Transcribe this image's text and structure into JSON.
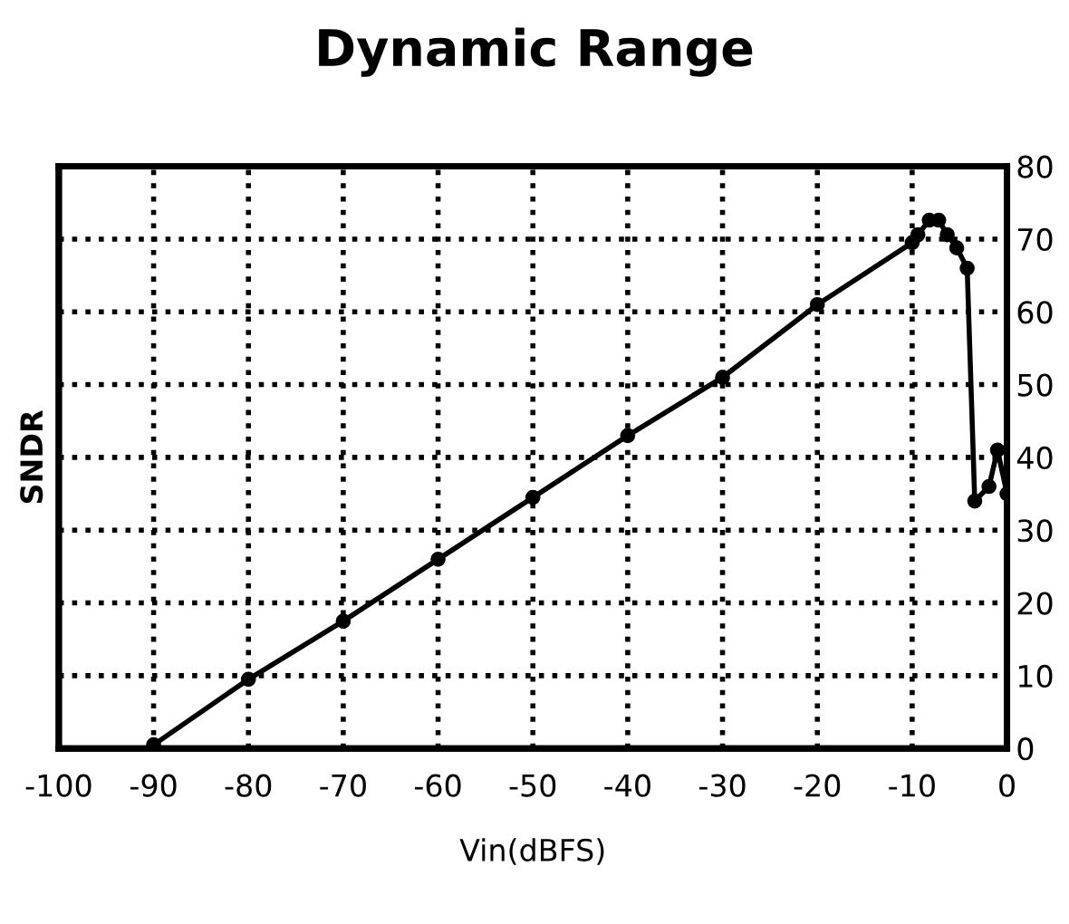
{
  "chart_data": {
    "type": "line",
    "title": "Dynamic Range",
    "xlabel": "Vin(dBFS)",
    "ylabel": "SNDR",
    "series": [
      {
        "color": "#000000",
        "axis": "y2",
        "x": [
          -90,
          -80,
          -70,
          -60,
          -50,
          -40,
          -30,
          -20,
          -10,
          -9.4,
          -8.2,
          -7.2,
          -6.3,
          -5.3,
          -4.2,
          -3.4,
          -1.9,
          -1,
          0
        ],
        "values": [
          0.5,
          9.5,
          17.5,
          26,
          34.5,
          43,
          51,
          61,
          69.5,
          70.6,
          72.6,
          72.6,
          70.6,
          68.8,
          66,
          34,
          36,
          41,
          35
        ]
      }
    ],
    "xlim": [
      -100,
      0
    ],
    "xticks": [
      -100,
      -90,
      -80,
      -70,
      -60,
      -50,
      -40,
      -30,
      -20,
      -10,
      0
    ],
    "y2lim": [
      0,
      80
    ],
    "y2ticks": [
      0,
      10,
      20,
      30,
      40,
      50,
      60,
      70,
      80
    ],
    "grid": true,
    "marker": "circle",
    "line_style": "solid",
    "legend": false
  }
}
